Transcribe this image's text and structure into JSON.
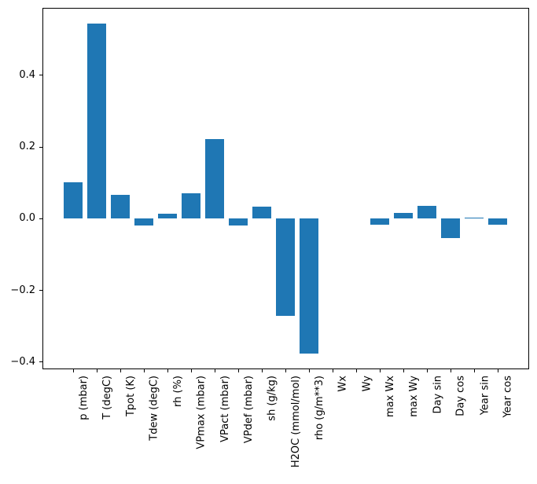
{
  "figure": {
    "background": "#ffffff",
    "spine_color": "#000000",
    "tick_color": "#000000",
    "text_color": "#000000"
  },
  "chart_data": {
    "type": "bar",
    "title": "",
    "xlabel": "",
    "ylabel": "",
    "bar_color": "#1f77b4",
    "grid": false,
    "legend_position": "none",
    "x_tick_label_rotation": 90,
    "ylim": [
      -0.42,
      0.588
    ],
    "categories": [
      "p (mbar)",
      "T (degC)",
      "Tpot (K)",
      "Tdew (degC)",
      "rh (%)",
      "VPmax (mbar)",
      "VPact (mbar)",
      "VPdef (mbar)",
      "sh (g/kg)",
      "H2OC (mmol/mol)",
      "rho (g/m**3)",
      "Wx",
      "Wy",
      "max Wx",
      "max Wy",
      "Day sin",
      "Day cos",
      "Year sin",
      "Year cos"
    ],
    "values": [
      0.101,
      0.545,
      0.066,
      -0.019,
      0.013,
      0.071,
      0.221,
      -0.019,
      0.033,
      -0.271,
      -0.376,
      0.0,
      0.0,
      -0.017,
      0.017,
      0.035,
      -0.055,
      0.004,
      -0.017
    ],
    "yticks": {
      "values": [
        0.4,
        0.2,
        0.0,
        -0.2,
        -0.4
      ],
      "labels": [
        "0.4",
        "0.2",
        "0.0",
        "−0.2",
        "−0.4"
      ]
    }
  }
}
